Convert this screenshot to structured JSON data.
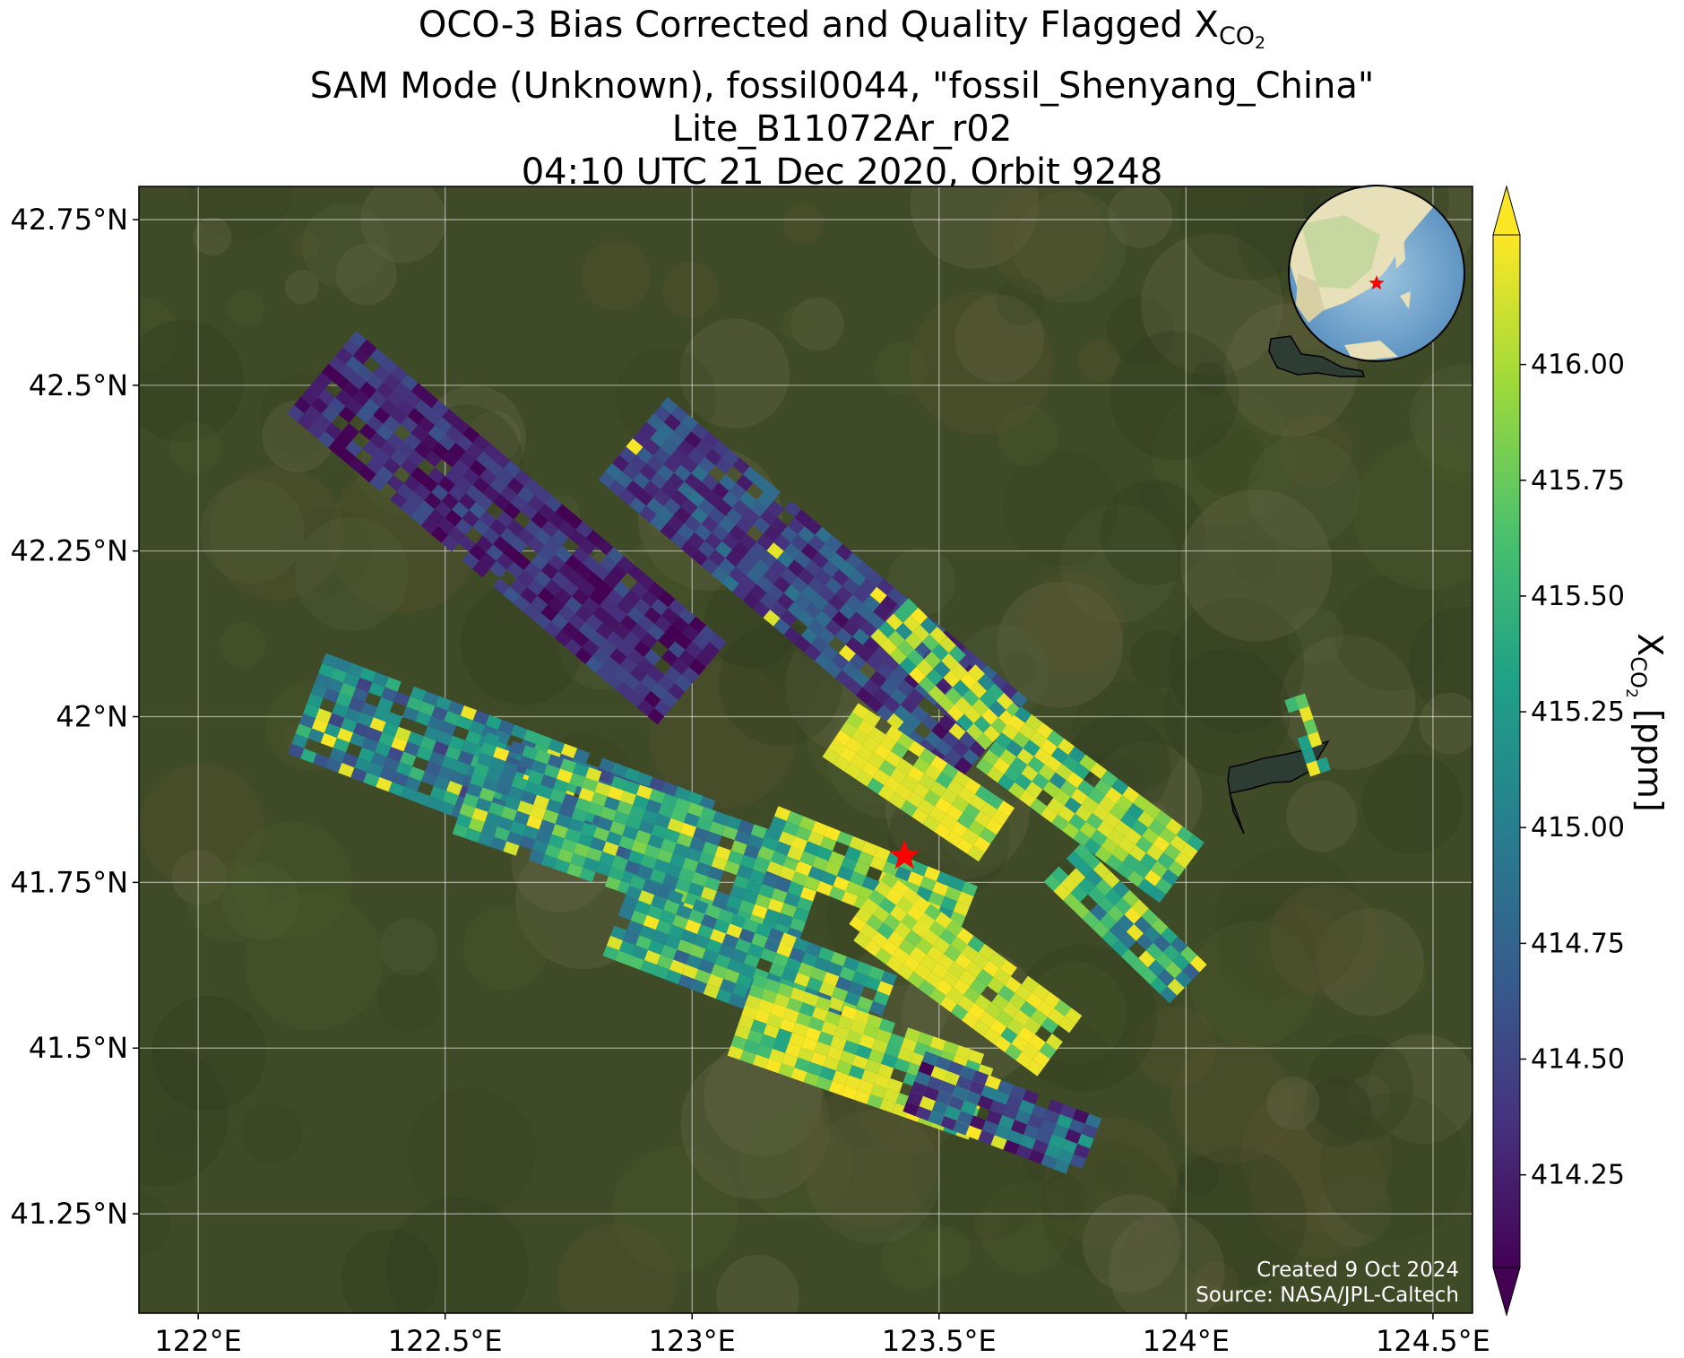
{
  "title": {
    "line1_prefix": "OCO-3 Bias Corrected and Quality Flagged X",
    "line1_sub": "CO",
    "line1_subsub": "2",
    "line2": "SAM Mode (Unknown), fossil0044, \"fossil_Shenyang_China\"",
    "line3": "Lite_B11072Ar_r02",
    "line4": "04:10 UTC 21 Dec 2020, Orbit 9248"
  },
  "map": {
    "lon_range": [
      121.88,
      124.58
    ],
    "lat_range": [
      41.1,
      42.8
    ],
    "lon_ticks": [
      122.0,
      122.5,
      123.0,
      123.5,
      124.0,
      124.5
    ],
    "lon_tick_labels": [
      "122°E",
      "122.5°E",
      "123°E",
      "123.5°E",
      "124°E",
      "124.5°E"
    ],
    "lat_ticks": [
      42.75,
      42.5,
      42.25,
      42.0,
      41.75,
      41.5,
      41.25
    ],
    "lat_tick_labels": [
      "42.75°N",
      "42.5°N",
      "42.25°N",
      "42°N",
      "41.75°N",
      "41.5°N",
      "41.25°N"
    ],
    "grid": true,
    "basemap": "satellite imagery",
    "target_marker": {
      "symbol": "star-icon",
      "color": "#ff0000",
      "lon": 123.43,
      "lat": 41.79
    },
    "inset_globe": {
      "placement": "top-right",
      "marker": "star-icon",
      "marker_color": "#ff0000"
    },
    "footer": {
      "created": "Created 9 Oct 2024",
      "source": "Source: NASA/JPL-Caltech"
    }
  },
  "colorbar": {
    "colormap": "viridis",
    "range": [
      414.05,
      416.28
    ],
    "extend": "both",
    "ticks": [
      414.25,
      414.5,
      414.75,
      415.0,
      415.25,
      415.5,
      415.75,
      416.0
    ],
    "tick_labels": [
      "414.25",
      "414.50",
      "414.75",
      "415.00",
      "415.25",
      "415.50",
      "415.75",
      "416.00"
    ],
    "label_prefix": "X",
    "label_sub": "CO",
    "label_subsub": "2",
    "label_suffix": " [ppm]"
  },
  "chart_data": {
    "type": "heatmap",
    "colormap": "viridis",
    "value_range": [
      414.05,
      416.28
    ],
    "value_units": "ppm",
    "swaths": [
      {
        "lon": [
          122.25,
          123.0
        ],
        "lat": [
          42.52,
          42.05
        ],
        "mean": 414.3,
        "jitter": 0.3,
        "stripe_amp": 0.05,
        "hi_frac": 0.0
      },
      {
        "lon": [
          122.88,
          123.6
        ],
        "lat": [
          42.42,
          41.97
        ],
        "mean": 414.5,
        "jitter": 0.35,
        "stripe_amp": 0.05,
        "hi_frac": 0.02
      },
      {
        "lon": [
          123.4,
          123.63
        ],
        "lat": [
          42.15,
          41.98
        ],
        "mean": 415.6,
        "jitter": 0.5,
        "stripe_amp": 0.05,
        "hi_frac": 0.45
      },
      {
        "lon": [
          122.22,
          123.0
        ],
        "lat": [
          42.02,
          41.8
        ],
        "mean": 415.0,
        "jitter": 0.5,
        "stripe_amp": 0.05,
        "hi_frac": 0.08
      },
      {
        "lon": [
          122.55,
          123.25
        ],
        "lat": [
          41.9,
          41.72
        ],
        "mean": 415.3,
        "jitter": 0.55,
        "stripe_amp": 0.05,
        "hi_frac": 0.12
      },
      {
        "lon": [
          123.3,
          123.62
        ],
        "lat": [
          41.98,
          41.82
        ],
        "mean": 415.9,
        "jitter": 0.4,
        "stripe_amp": 0.05,
        "hi_frac": 0.6
      },
      {
        "lon": [
          123.62,
          124.0
        ],
        "lat": [
          41.97,
          41.76
        ],
        "mean": 415.6,
        "jitter": 0.5,
        "stripe_amp": 0.05,
        "hi_frac": 0.35
      },
      {
        "lon": [
          123.15,
          123.55
        ],
        "lat": [
          41.82,
          41.7
        ],
        "mean": 415.6,
        "jitter": 0.5,
        "stripe_amp": 0.05,
        "hi_frac": 0.3
      },
      {
        "lon": [
          122.85,
          123.38
        ],
        "lat": [
          41.7,
          41.55
        ],
        "mean": 415.3,
        "jitter": 0.55,
        "stripe_amp": 0.05,
        "hi_frac": 0.15
      },
      {
        "lon": [
          123.35,
          123.75
        ],
        "lat": [
          41.72,
          41.5
        ],
        "mean": 415.9,
        "jitter": 0.4,
        "stripe_amp": 0.05,
        "hi_frac": 0.55
      },
      {
        "lon": [
          123.1,
          123.6
        ],
        "lat": [
          41.55,
          41.42
        ],
        "mean": 415.8,
        "jitter": 0.45,
        "stripe_amp": 0.05,
        "hi_frac": 0.45
      },
      {
        "lon": [
          123.45,
          123.8
        ],
        "lat": [
          41.45,
          41.35
        ],
        "mean": 414.7,
        "jitter": 0.6,
        "stripe_amp": 0.05,
        "hi_frac": 0.1
      },
      {
        "lon": [
          123.75,
          124.0
        ],
        "lat": [
          41.78,
          41.6
        ],
        "mean": 415.3,
        "jitter": 0.55,
        "stripe_amp": 0.05,
        "hi_frac": 0.2
      },
      {
        "lon": [
          124.22,
          124.27
        ],
        "lat": [
          42.03,
          41.92
        ],
        "mean": 415.2,
        "jitter": 0.6,
        "stripe_amp": 0.05,
        "hi_frac": 0.25
      }
    ]
  }
}
